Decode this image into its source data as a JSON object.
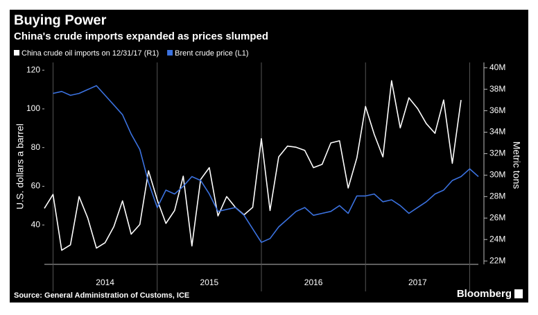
{
  "chart_data": {
    "type": "line",
    "title": "Buying Power",
    "subtitle": "China's crude imports expanded as prices slumped",
    "ylabel": "U.S. dollars a barrel",
    "y2label": "Metric tons",
    "source": "Source: General Administration of Customs, ICE",
    "brand": "Bloomberg",
    "xlim": [
      "2013-12",
      "2018-02"
    ],
    "xticks": [
      "2014",
      "2015",
      "2016",
      "2017"
    ],
    "ylim": [
      20,
      124
    ],
    "yticks": [
      40,
      60,
      80,
      100,
      120
    ],
    "y2lim": [
      21.75,
      40.5
    ],
    "y2ticks": [
      {
        "value": 22,
        "label": "22M"
      },
      {
        "value": 24,
        "label": "24M"
      },
      {
        "value": 26,
        "label": "26M"
      },
      {
        "value": 28,
        "label": "28M"
      },
      {
        "value": 30,
        "label": "30M"
      },
      {
        "value": 32,
        "label": "32M"
      },
      {
        "value": 34,
        "label": "34M"
      },
      {
        "value": 36,
        "label": "36M"
      },
      {
        "value": 38,
        "label": "38M"
      },
      {
        "value": 40,
        "label": "40M"
      }
    ],
    "series": [
      {
        "name": "China crude oil imports  on 12/31/17 (R1)",
        "color": "#ffffff",
        "axis": "y2",
        "x": [
          "2013-12",
          "2014-01",
          "2014-02",
          "2014-03",
          "2014-04",
          "2014-05",
          "2014-06",
          "2014-07",
          "2014-08",
          "2014-09",
          "2014-10",
          "2014-11",
          "2014-12",
          "2015-01",
          "2015-02",
          "2015-03",
          "2015-04",
          "2015-05",
          "2015-06",
          "2015-07",
          "2015-08",
          "2015-09",
          "2015-10",
          "2015-11",
          "2015-12",
          "2016-01",
          "2016-02",
          "2016-03",
          "2016-04",
          "2016-05",
          "2016-06",
          "2016-07",
          "2016-08",
          "2016-09",
          "2016-10",
          "2016-11",
          "2016-12",
          "2017-01",
          "2017-02",
          "2017-03",
          "2017-04",
          "2017-05",
          "2017-06",
          "2017-07",
          "2017-08",
          "2017-09",
          "2017-10",
          "2017-11",
          "2017-12"
        ],
        "values": [
          26.9,
          28.2,
          23.0,
          23.5,
          28.0,
          26.0,
          23.2,
          23.7,
          25.2,
          27.6,
          24.5,
          25.4,
          30.4,
          27.7,
          25.5,
          26.7,
          29.9,
          23.4,
          29.6,
          30.7,
          26.2,
          28.0,
          27.0,
          26.3,
          27.0,
          33.4,
          26.7,
          31.7,
          32.7,
          32.6,
          32.3,
          30.7,
          31.0,
          33.0,
          33.2,
          28.8,
          31.6,
          36.4,
          33.8,
          31.7,
          38.8,
          34.4,
          37.2,
          36.2,
          34.8,
          33.9,
          37.0,
          31.1,
          37.0
        ]
      },
      {
        "name": "Brent crude price (L1)",
        "color": "#3b72e0",
        "axis": "y",
        "x": [
          "2014-01",
          "2014-02",
          "2014-03",
          "2014-04",
          "2014-05",
          "2014-06",
          "2014-07",
          "2014-08",
          "2014-09",
          "2014-10",
          "2014-11",
          "2014-12",
          "2015-01",
          "2015-02",
          "2015-03",
          "2015-04",
          "2015-05",
          "2015-06",
          "2015-07",
          "2015-08",
          "2015-09",
          "2015-10",
          "2015-11",
          "2015-12",
          "2016-01",
          "2016-02",
          "2016-03",
          "2016-04",
          "2016-05",
          "2016-06",
          "2016-07",
          "2016-08",
          "2016-09",
          "2016-10",
          "2016-11",
          "2016-12",
          "2017-01",
          "2017-02",
          "2017-03",
          "2017-04",
          "2017-05",
          "2017-06",
          "2017-07",
          "2017-08",
          "2017-09",
          "2017-10",
          "2017-11",
          "2017-12",
          "2018-01",
          "2018-02"
        ],
        "values": [
          108,
          109,
          107,
          108,
          110,
          112,
          107,
          102,
          97,
          87,
          79,
          62,
          49,
          58,
          56,
          60,
          65,
          63,
          56,
          47,
          48,
          49,
          45,
          38,
          31,
          33,
          39,
          43,
          47,
          49,
          45,
          46,
          47,
          50,
          46,
          55,
          55,
          56,
          52,
          53,
          50,
          46,
          49,
          52,
          56,
          58,
          63,
          65,
          69,
          65
        ]
      }
    ]
  }
}
